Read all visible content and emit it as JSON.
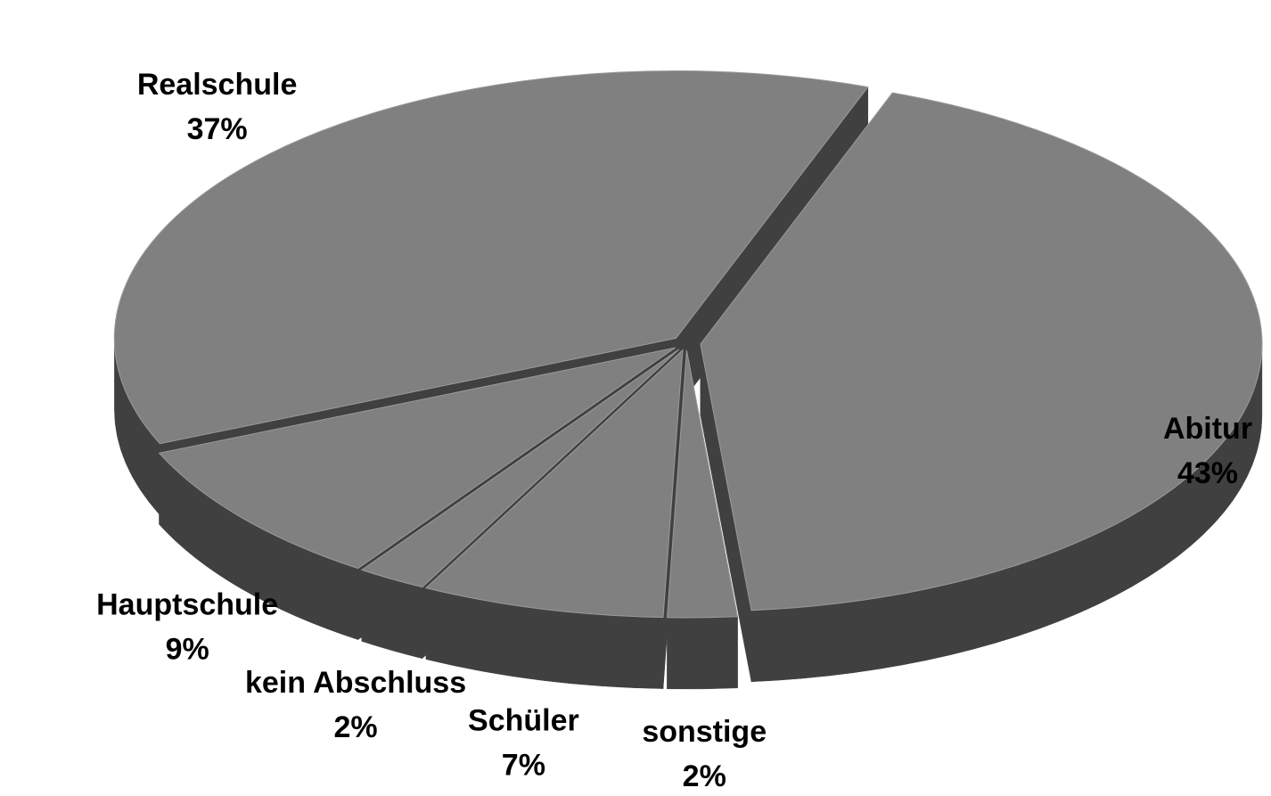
{
  "chart_data": {
    "type": "pie3d",
    "categories": [
      "Abitur",
      "sonstige",
      "Schüler",
      "kein Abschluss",
      "Hauptschule",
      "Realschule"
    ],
    "values": [
      43,
      2,
      7,
      2,
      9,
      37
    ],
    "value_labels": [
      "43%",
      "2%",
      "7%",
      "2%",
      "9%",
      "37%"
    ],
    "color": "#808080",
    "side_color": "#404040"
  }
}
